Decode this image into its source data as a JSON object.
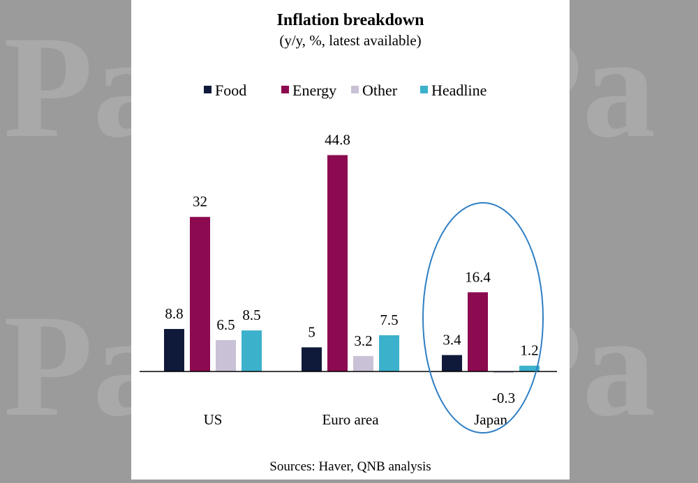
{
  "chart_data": {
    "type": "bar",
    "title": "Inflation breakdown",
    "subtitle": "(y/y, %, latest available)",
    "categories": [
      "US",
      "Euro area",
      "Japan"
    ],
    "series": [
      {
        "name": "Food",
        "values": [
          8.8,
          5,
          3.4
        ],
        "labels": [
          "8.8",
          "5",
          "3.4"
        ],
        "color": "#0f1a3a"
      },
      {
        "name": "Energy",
        "values": [
          32,
          44.8,
          16.4
        ],
        "labels": [
          "32",
          "44.8",
          "16.4"
        ],
        "color": "#8b0a50"
      },
      {
        "name": "Other",
        "values": [
          6.5,
          3.2,
          -0.3
        ],
        "labels": [
          "6.5",
          "3.2",
          "-0.3"
        ],
        "color": "#c9c1d6"
      },
      {
        "name": "Headline",
        "values": [
          8.5,
          7.5,
          1.2
        ],
        "labels": [
          "8.5",
          "7.5",
          "1.2"
        ],
        "color": "#3cb1cc"
      }
    ],
    "ylim": [
      -2,
      50
    ],
    "legend_position": "top",
    "grid": false,
    "highlight": {
      "category": "Japan",
      "shape": "ellipse",
      "color": "#2f7fc4"
    },
    "source": "Sources: Haver, QNB analysis"
  },
  "watermark": {
    "text": "Pa"
  }
}
